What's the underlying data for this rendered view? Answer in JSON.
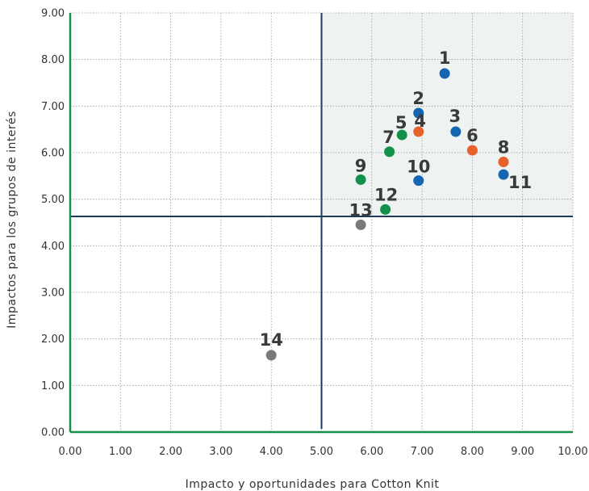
{
  "chart_data": {
    "type": "scatter",
    "xlabel": "Impacto y oportunidades para Cotton Knit",
    "ylabel": "Impactos para los grupos de interés",
    "xlim": [
      0,
      10
    ],
    "ylim": [
      0,
      9
    ],
    "x_ticks": [
      "0.00",
      "1.00",
      "2.00",
      "3.00",
      "4.00",
      "5.00",
      "6.00",
      "7.00",
      "8.00",
      "9.00",
      "10.00"
    ],
    "y_ticks": [
      "0.00",
      "1.00",
      "2.00",
      "3.00",
      "4.00",
      "5.00",
      "6.00",
      "7.00",
      "8.00",
      "9.00"
    ],
    "grid": true,
    "threshold_x": 5.0,
    "threshold_y": 4.63,
    "highlight_region": {
      "x": [
        5.0,
        10.0
      ],
      "y": [
        4.63,
        9.0
      ]
    },
    "colors": {
      "blue": "#1565b0",
      "orange": "#e8612a",
      "green": "#13914a",
      "gray": "#7a7a7a",
      "axis": "#13914a",
      "threshold": "#1c3a5a",
      "highlight": "#eef2f1"
    },
    "points": [
      {
        "label": "1",
        "x": 7.45,
        "y": 7.7,
        "color": "blue"
      },
      {
        "label": "2",
        "x": 6.93,
        "y": 6.85,
        "color": "blue"
      },
      {
        "label": "3",
        "x": 7.67,
        "y": 6.45,
        "color": "blue"
      },
      {
        "label": "4",
        "x": 6.93,
        "y": 6.45,
        "color": "orange"
      },
      {
        "label": "5",
        "x": 6.6,
        "y": 6.38,
        "color": "green"
      },
      {
        "label": "6",
        "x": 8.0,
        "y": 6.05,
        "color": "orange"
      },
      {
        "label": "7",
        "x": 6.35,
        "y": 6.02,
        "color": "green"
      },
      {
        "label": "8",
        "x": 8.62,
        "y": 5.8,
        "color": "orange"
      },
      {
        "label": "9",
        "x": 5.78,
        "y": 5.42,
        "color": "green"
      },
      {
        "label": "10",
        "x": 6.93,
        "y": 5.4,
        "color": "blue"
      },
      {
        "label": "11",
        "x": 8.62,
        "y": 5.53,
        "color": "blue"
      },
      {
        "label": "12",
        "x": 6.27,
        "y": 4.78,
        "color": "green"
      },
      {
        "label": "13",
        "x": 5.78,
        "y": 4.45,
        "color": "gray"
      },
      {
        "label": "14",
        "x": 4.0,
        "y": 1.65,
        "color": "gray"
      }
    ]
  }
}
